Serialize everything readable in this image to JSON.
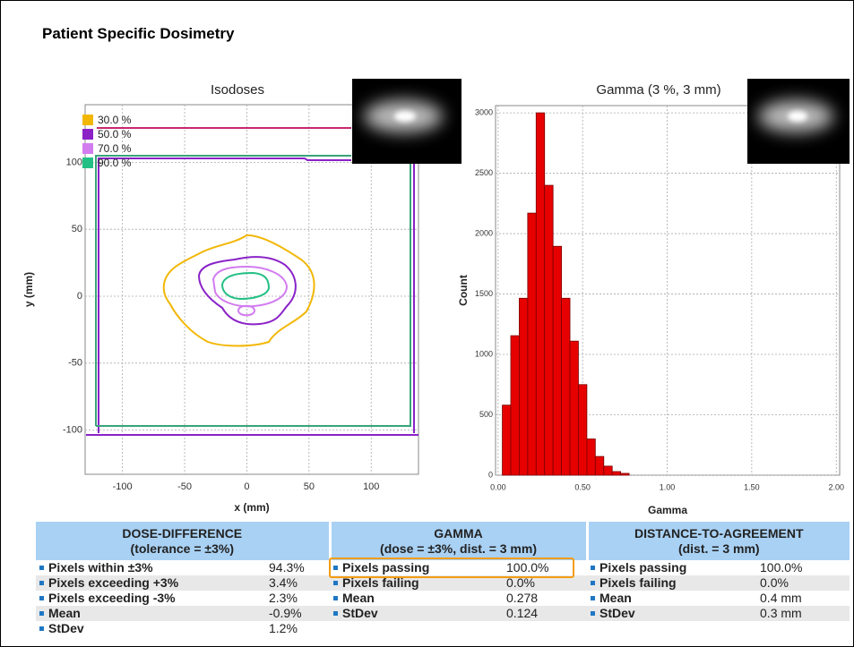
{
  "title": "Patient Specific Dosimetry",
  "chart_data": [
    {
      "type": "contour",
      "title": "Isodoses",
      "xlabel": "x (mm)",
      "ylabel": "y (mm)",
      "xlim": [
        -130,
        138
      ],
      "ylim": [
        -133,
        143
      ],
      "xticks": [
        -100,
        -50,
        0,
        50,
        100
      ],
      "yticks": [
        -100,
        -50,
        0,
        50,
        100
      ],
      "grid": true,
      "legend": "upper left",
      "series": [
        {
          "name": "30.0 %",
          "color": "#f2b705"
        },
        {
          "name": "50.0 %",
          "color": "#8a22c8"
        },
        {
          "name": "70.0 %",
          "color": "#d27cf0"
        },
        {
          "name": "90.0 %",
          "color": "#22c084"
        }
      ]
    },
    {
      "type": "histogram",
      "title": "Gamma (3 %, 3 mm)",
      "xlabel": "Gamma",
      "ylabel": "Count",
      "bins": [
        0.025,
        0.075,
        0.125,
        0.175,
        0.225,
        0.275,
        0.325,
        0.375,
        0.425,
        0.475,
        0.525,
        0.575,
        0.625,
        0.675,
        0.725,
        0.775
      ],
      "counts": [
        580,
        1155,
        1465,
        2170,
        3000,
        2400,
        1895,
        1465,
        1110,
        750,
        300,
        155,
        75,
        30,
        15
      ],
      "color": "#e60000",
      "xlim": [
        -0.015,
        2.02
      ],
      "ylim": [
        0,
        3060
      ],
      "xticks": [
        {
          "value": 0,
          "label": "0.00"
        },
        {
          "value": 0.5,
          "label": "0.50"
        },
        {
          "value": 1,
          "label": "1.00"
        },
        {
          "value": 1.5,
          "label": "1.50"
        },
        {
          "value": 2,
          "label": "2.00"
        }
      ],
      "yticks": [
        0,
        500,
        1000,
        1500,
        2000,
        2500,
        3000
      ],
      "grid": true
    }
  ],
  "table": {
    "sections": [
      {
        "title": "DOSE-DIFFERENCE",
        "subtitle": "(tolerance = ±3%)",
        "rows": [
          [
            "Pixels within ±3%",
            "94.3%"
          ],
          [
            "Pixels exceeding +3%",
            "3.4%"
          ],
          [
            "Pixels exceeding -3%",
            "2.3%"
          ],
          [
            "Mean",
            "-0.9%"
          ],
          [
            "StDev",
            "1.2%"
          ]
        ]
      },
      {
        "title": "GAMMA",
        "subtitle": "(dose = ±3%, dist. = 3 mm)",
        "rows": [
          [
            "Pixels passing",
            "100.0%"
          ],
          [
            "Pixels failing",
            "0.0%"
          ],
          [
            "Mean",
            "0.278"
          ],
          [
            "StDev",
            "0.124"
          ]
        ]
      },
      {
        "title": "DISTANCE-TO-AGREEMENT",
        "subtitle": "(dist. = 3 mm)",
        "rows": [
          [
            "Pixels passing",
            "100.0%"
          ],
          [
            "Pixels failing",
            "0.0%"
          ],
          [
            "Mean",
            "0.4 mm"
          ],
          [
            "StDev",
            "0.3 mm"
          ]
        ]
      }
    ]
  }
}
